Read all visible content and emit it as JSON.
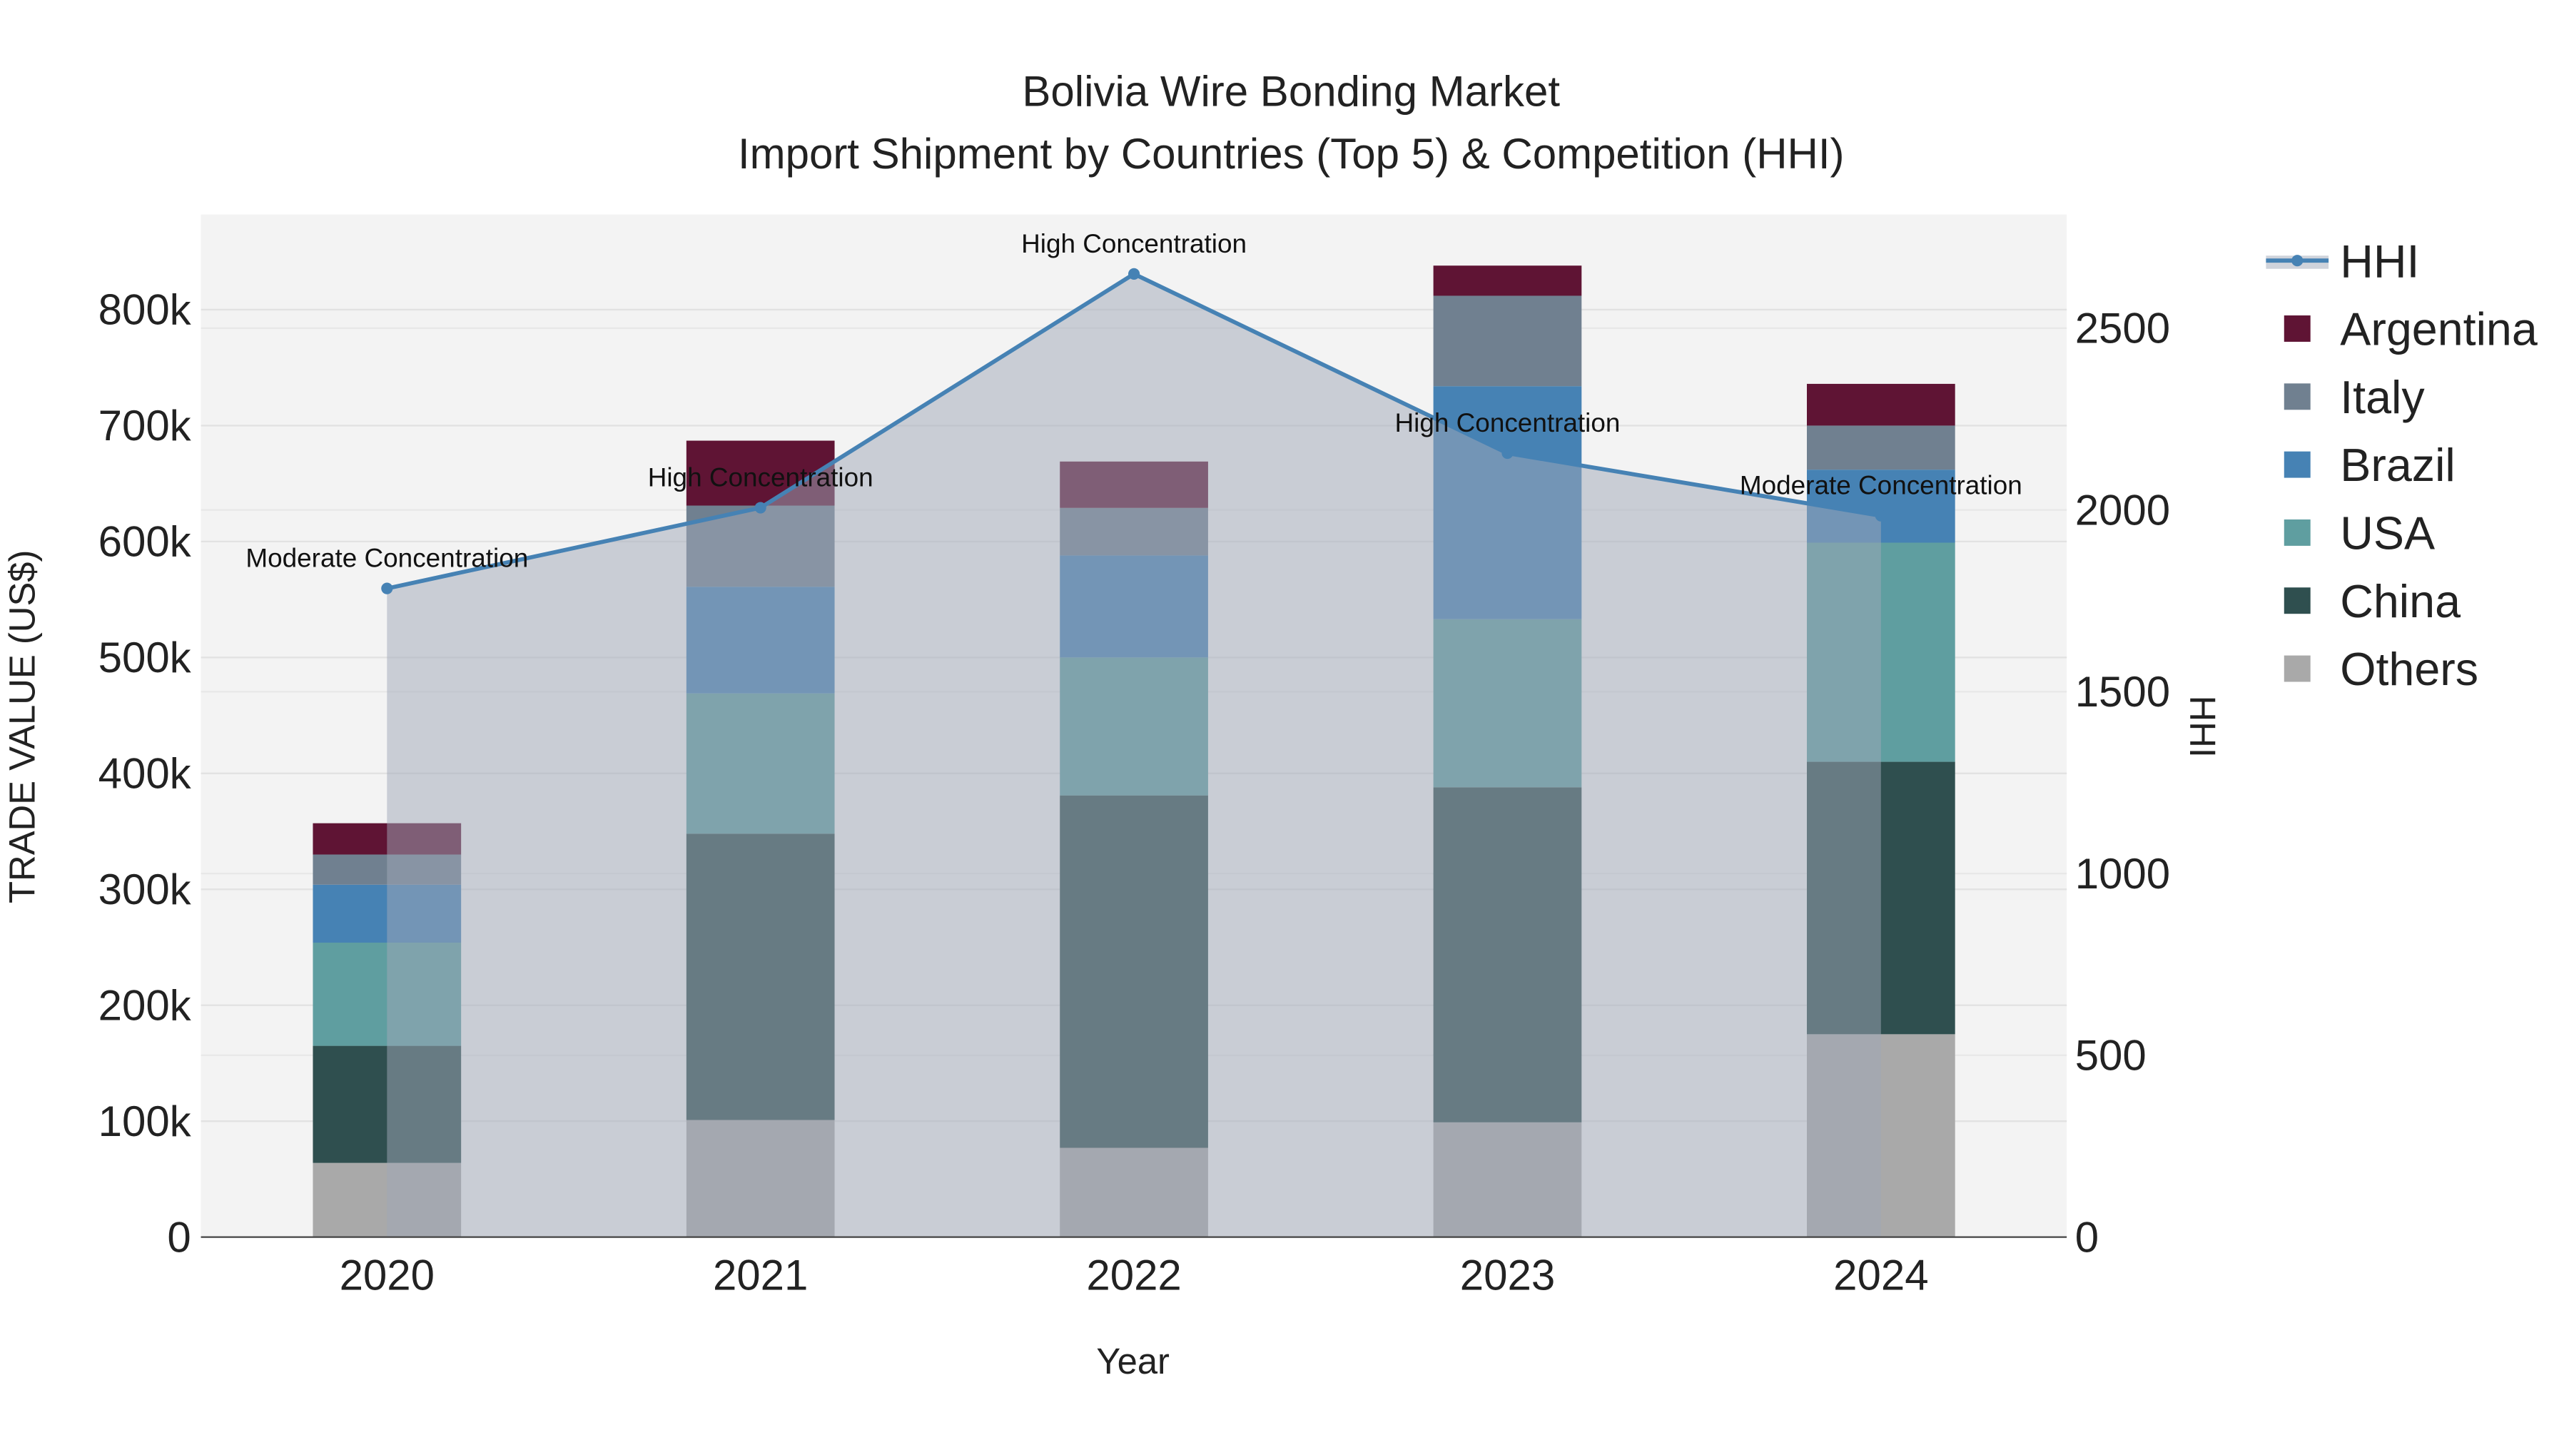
{
  "chart_data": {
    "type": "bar",
    "stacked": true,
    "title": "Bolivia Wire Bonding Market",
    "subtitle": "Import Shipment by Countries (Top 5) & Competition (HHI)",
    "xlabel": "Year",
    "ylabel": "TRADE VALUE (US$)",
    "y2label": "HHI",
    "categories": [
      "2020",
      "2021",
      "2022",
      "2023",
      "2024"
    ],
    "ylim": [
      0,
      880000
    ],
    "y2lim": [
      0,
      2800
    ],
    "yticks": [
      0,
      100000,
      200000,
      300000,
      400000,
      500000,
      600000,
      700000,
      800000
    ],
    "ytick_labels": [
      "0",
      "100k",
      "200k",
      "300k",
      "400k",
      "500k",
      "600k",
      "700k",
      "800k"
    ],
    "y2ticks": [
      0,
      500,
      1000,
      1500,
      2000,
      2500
    ],
    "y2tick_labels": [
      "0",
      "500",
      "1000",
      "1500",
      "2000",
      "2500"
    ],
    "series": [
      {
        "name": "Others",
        "color": "#a9a9a9",
        "values": [
          64000,
          101000,
          77000,
          99000,
          175000
        ]
      },
      {
        "name": "China",
        "color": "#2f4f4f",
        "values": [
          101000,
          247000,
          304000,
          289000,
          235000
        ]
      },
      {
        "name": "USA",
        "color": "#5f9ea0",
        "values": [
          89000,
          121000,
          119000,
          145000,
          189000
        ]
      },
      {
        "name": "Brazil",
        "color": "#4682b4",
        "values": [
          50000,
          92000,
          88000,
          201000,
          63000
        ]
      },
      {
        "name": "Italy",
        "color": "#708090",
        "values": [
          26000,
          70000,
          41000,
          78000,
          38000
        ]
      },
      {
        "name": "Argentina",
        "color": "#5f1434",
        "values": [
          27000,
          56000,
          40000,
          26000,
          36000
        ]
      }
    ],
    "hhi": {
      "name": "HHI",
      "color": "#4682b4",
      "values": [
        1784,
        2006,
        2649,
        2156,
        1984
      ],
      "annotations": [
        "Moderate Concentration",
        "High Concentration",
        "High Concentration",
        "High Concentration",
        "Moderate Concentration"
      ]
    },
    "legend": [
      "HHI",
      "Argentina",
      "Italy",
      "Brazil",
      "USA",
      "China",
      "Others"
    ],
    "legend_position": "right",
    "grid": true
  }
}
